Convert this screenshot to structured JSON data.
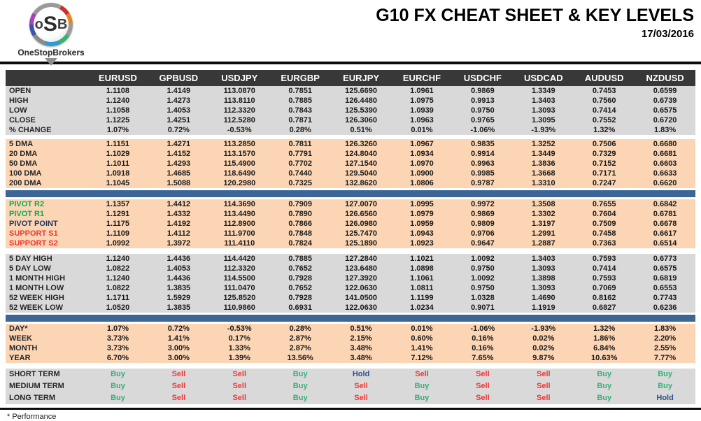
{
  "header": {
    "logo_text_o": "o",
    "logo_text_s": "S",
    "logo_text_b": "B",
    "logo_caption": "OneStopBrokers",
    "title": "G10 FX CHEAT SHEET & KEY LEVELS",
    "date": "17/03/2016"
  },
  "colors": {
    "header_bar": "#383838",
    "section_gray": "#d9d9d9",
    "section_peach": "#fbd5b4",
    "separator_blue": "#3d6596",
    "pivot_green": "#00b050",
    "support_red": "#f23535",
    "pivot_navy": "#22365c",
    "buy_green": "#35b078",
    "sell_red": "#f23535",
    "hold_blue": "#2e4d8c"
  },
  "table": {
    "columns": [
      "EURUSD",
      "GPBUSD",
      "USDJPY",
      "EURGBP",
      "EURJPY",
      "EURCHF",
      "USDCHF",
      "USDCAD",
      "AUDUSD",
      "NZDUSD"
    ],
    "sections": [
      {
        "id": "ohlc",
        "bg": "gray",
        "after": "gap6",
        "rows": [
          {
            "label": "OPEN",
            "values": [
              "1.1108",
              "1.4149",
              "113.0870",
              "0.7851",
              "125.6690",
              "1.0961",
              "0.9869",
              "1.3349",
              "0.7453",
              "0.6599"
            ]
          },
          {
            "label": "HIGH",
            "values": [
              "1.1240",
              "1.4273",
              "113.8110",
              "0.7885",
              "126.4480",
              "1.0975",
              "0.9913",
              "1.3403",
              "0.7560",
              "0.6739"
            ]
          },
          {
            "label": "LOW",
            "values": [
              "1.1058",
              "1.4053",
              "112.3320",
              "0.7843",
              "125.5390",
              "1.0939",
              "0.9750",
              "1.3093",
              "0.7414",
              "0.6575"
            ]
          },
          {
            "label": "CLOSE",
            "values": [
              "1.1225",
              "1.4251",
              "112.5280",
              "0.7871",
              "126.3060",
              "1.0963",
              "0.9765",
              "1.3095",
              "0.7552",
              "0.6720"
            ]
          },
          {
            "label": "% CHANGE",
            "values": [
              "1.07%",
              "0.72%",
              "-0.53%",
              "0.28%",
              "0.51%",
              "0.01%",
              "-1.06%",
              "-1.93%",
              "1.32%",
              "1.83%"
            ]
          }
        ]
      },
      {
        "id": "dma",
        "bg": "peach",
        "after": "blue",
        "rows": [
          {
            "label": "5 DMA",
            "values": [
              "1.1151",
              "1.4271",
              "113.2850",
              "0.7811",
              "126.3260",
              "1.0967",
              "0.9835",
              "1.3252",
              "0.7506",
              "0.6680"
            ]
          },
          {
            "label": "20 DMA",
            "values": [
              "1.1029",
              "1.4152",
              "113.1570",
              "0.7791",
              "124.8040",
              "1.0934",
              "0.9914",
              "1.3449",
              "0.7329",
              "0.6681"
            ]
          },
          {
            "label": "50 DMA",
            "values": [
              "1.1011",
              "1.4293",
              "115.4900",
              "0.7702",
              "127.1540",
              "1.0970",
              "0.9963",
              "1.3836",
              "0.7152",
              "0.6603"
            ]
          },
          {
            "label": "100 DMA",
            "values": [
              "1.0918",
              "1.4685",
              "118.6490",
              "0.7440",
              "129.5040",
              "1.0900",
              "0.9985",
              "1.3668",
              "0.7171",
              "0.6633"
            ]
          },
          {
            "label": "200 DMA",
            "values": [
              "1.1045",
              "1.5088",
              "120.2980",
              "0.7325",
              "132.8620",
              "1.0806",
              "0.9787",
              "1.3310",
              "0.7247",
              "0.6620"
            ]
          }
        ]
      },
      {
        "id": "pivots",
        "bg": "peach",
        "after": "gap8",
        "rows": [
          {
            "label": "PIVOT R2",
            "label_color": "green",
            "values": [
              "1.1357",
              "1.4412",
              "114.3690",
              "0.7909",
              "127.0070",
              "1.0995",
              "0.9972",
              "1.3508",
              "0.7655",
              "0.6842"
            ]
          },
          {
            "label": "PIVOT R1",
            "label_color": "green",
            "values": [
              "1.1291",
              "1.4332",
              "113.4490",
              "0.7890",
              "126.6560",
              "1.0979",
              "0.9869",
              "1.3302",
              "0.7604",
              "0.6781"
            ]
          },
          {
            "label": "PIVOT POINT",
            "label_color": "navy",
            "values": [
              "1.1175",
              "1.4192",
              "112.8900",
              "0.7866",
              "126.0980",
              "1.0959",
              "0.9809",
              "1.3197",
              "0.7509",
              "0.6678"
            ]
          },
          {
            "label": "SUPPORT S1",
            "label_color": "red",
            "values": [
              "1.1109",
              "1.4112",
              "111.9700",
              "0.7848",
              "125.7470",
              "1.0943",
              "0.9706",
              "1.2991",
              "0.7458",
              "0.6617"
            ]
          },
          {
            "label": "SUPPORT S2",
            "label_color": "red",
            "values": [
              "1.0992",
              "1.3972",
              "111.4110",
              "0.7824",
              "125.1890",
              "1.0923",
              "0.9647",
              "1.2887",
              "0.7363",
              "0.6514"
            ]
          }
        ]
      },
      {
        "id": "ranges",
        "bg": "gray",
        "after": "blue",
        "rows": [
          {
            "label": "5 DAY HIGH",
            "values": [
              "1.1240",
              "1.4436",
              "114.4420",
              "0.7885",
              "127.2840",
              "1.1021",
              "1.0092",
              "1.3403",
              "0.7593",
              "0.6773"
            ]
          },
          {
            "label": "5 DAY LOW",
            "values": [
              "1.0822",
              "1.4053",
              "112.3320",
              "0.7652",
              "123.6480",
              "1.0898",
              "0.9750",
              "1.3093",
              "0.7414",
              "0.6575"
            ]
          },
          {
            "label": "1 MONTH HIGH",
            "values": [
              "1.1240",
              "1.4436",
              "114.5500",
              "0.7928",
              "127.3920",
              "1.1061",
              "1.0092",
              "1.3898",
              "0.7593",
              "0.6819"
            ]
          },
          {
            "label": "1 MONTH LOW",
            "values": [
              "1.0822",
              "1.3835",
              "111.0470",
              "0.7652",
              "122.0630",
              "1.0811",
              "0.9750",
              "1.3093",
              "0.7069",
              "0.6553"
            ]
          },
          {
            "label": "52 WEEK HIGH",
            "values": [
              "1.1711",
              "1.5929",
              "125.8520",
              "0.7928",
              "141.0500",
              "1.1199",
              "1.0328",
              "1.4690",
              "0.8162",
              "0.7743"
            ]
          },
          {
            "label": "52 WEEK LOW",
            "values": [
              "1.0520",
              "1.3835",
              "110.9860",
              "0.6931",
              "122.0630",
              "1.0234",
              "0.9071",
              "1.1919",
              "0.6827",
              "0.6236"
            ]
          }
        ]
      },
      {
        "id": "performance",
        "bg": "peach",
        "after": "gap8",
        "rows": [
          {
            "label": "DAY*",
            "values": [
              "1.07%",
              "0.72%",
              "-0.53%",
              "0.28%",
              "0.51%",
              "0.01%",
              "-1.06%",
              "-1.93%",
              "1.32%",
              "1.83%"
            ]
          },
          {
            "label": "WEEK",
            "values": [
              "3.73%",
              "1.41%",
              "0.17%",
              "2.87%",
              "2.15%",
              "0.60%",
              "0.16%",
              "0.02%",
              "1.86%",
              "2.20%"
            ]
          },
          {
            "label": "MONTH",
            "values": [
              "3.73%",
              "3.00%",
              "1.33%",
              "2.87%",
              "3.48%",
              "1.41%",
              "0.16%",
              "0.02%",
              "6.84%",
              "2.55%"
            ]
          },
          {
            "label": "YEAR",
            "values": [
              "6.70%",
              "3.00%",
              "1.39%",
              "13.56%",
              "3.48%",
              "7.12%",
              "7.65%",
              "9.87%",
              "10.63%",
              "7.77%"
            ]
          }
        ]
      },
      {
        "id": "signals",
        "bg": "gray",
        "after": null,
        "rows": [
          {
            "label": "SHORT TERM",
            "values": [
              "Buy",
              "Sell",
              "Sell",
              "Buy",
              "Hold",
              "Sell",
              "Sell",
              "Sell",
              "Buy",
              "Buy"
            ]
          },
          {
            "label": "MEDIUM TERM",
            "values": [
              "Buy",
              "Sell",
              "Sell",
              "Buy",
              "Sell",
              "Buy",
              "Sell",
              "Sell",
              "Buy",
              "Buy"
            ]
          },
          {
            "label": "LONG TERM",
            "values": [
              "Buy",
              "Sell",
              "Sell",
              "Buy",
              "Sell",
              "Buy",
              "Sell",
              "Sell",
              "Buy",
              "Hold"
            ]
          }
        ]
      }
    ]
  },
  "footer": {
    "note": "* Performance"
  }
}
